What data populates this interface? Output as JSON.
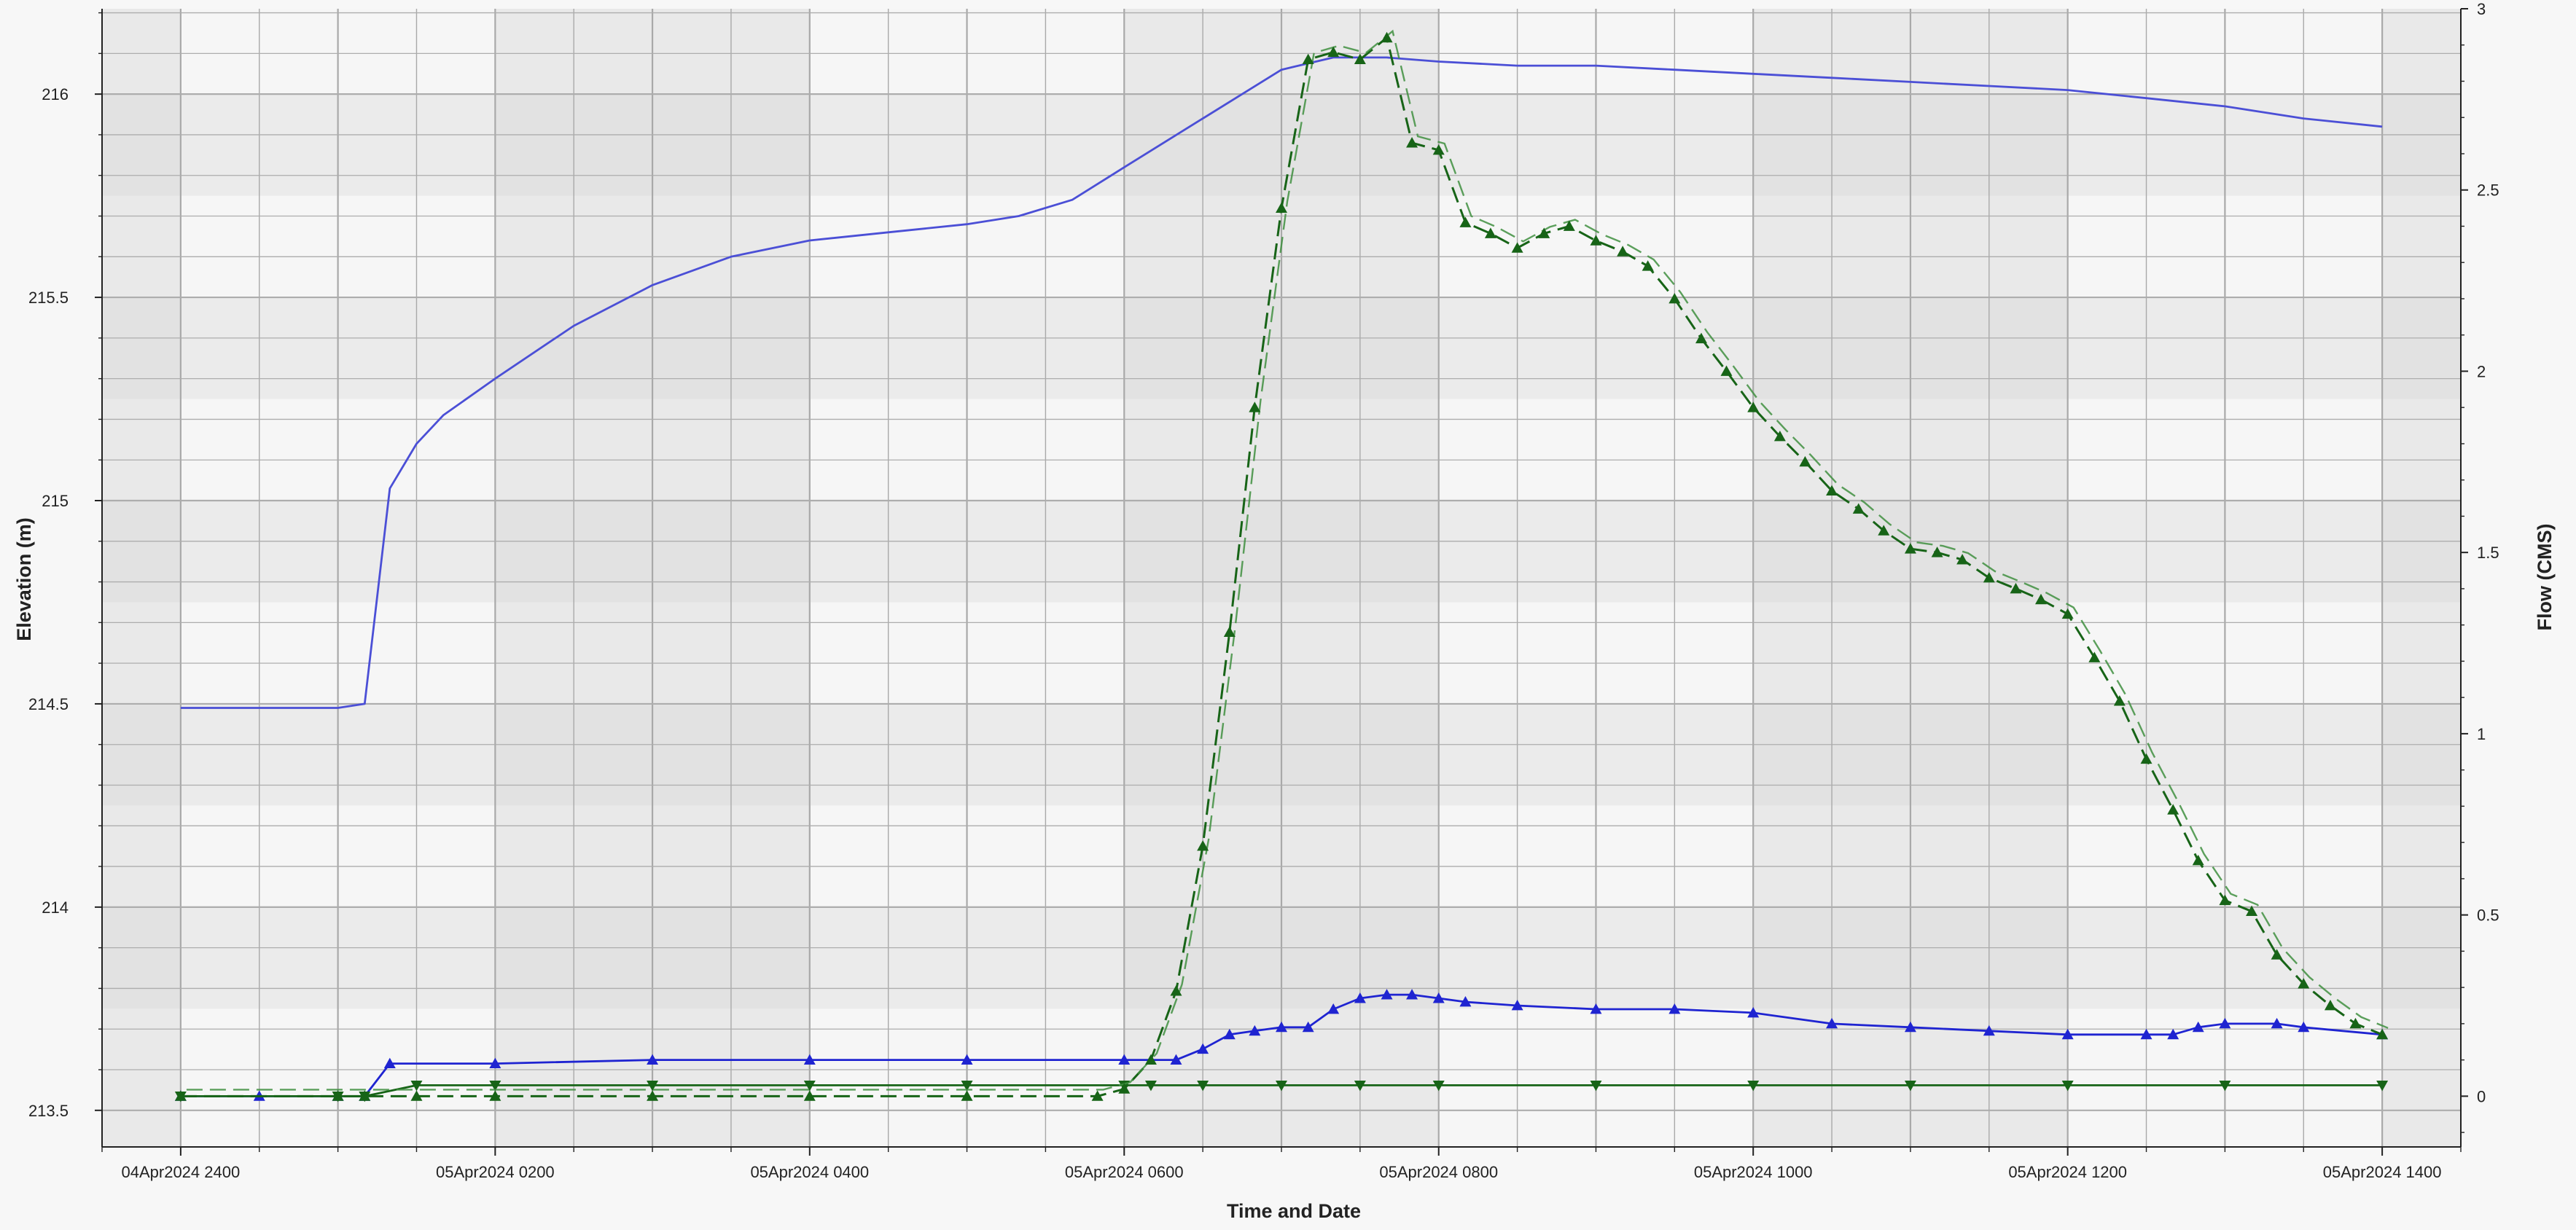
{
  "chart_data": {
    "type": "line",
    "title": "",
    "xlabel": "Time and Date",
    "ylabel_left": "Elevation (m)",
    "ylabel_right": "Flow (CMS)",
    "xlim": [
      -0.5,
      14.5
    ],
    "ylim_left": [
      213.41,
      216.21
    ],
    "ylim_right": [
      -0.14,
      3.0
    ],
    "x_unit": "hours after 04Apr2024 2400",
    "x_ticks": [
      {
        "x": 0,
        "label": "04Apr2024 2400"
      },
      {
        "x": 2,
        "label": "05Apr2024 0200"
      },
      {
        "x": 4,
        "label": "05Apr2024 0400"
      },
      {
        "x": 6,
        "label": "05Apr2024 0600"
      },
      {
        "x": 8,
        "label": "05Apr2024 0800"
      },
      {
        "x": 10,
        "label": "05Apr2024 1000"
      },
      {
        "x": 12,
        "label": "05Apr2024 1200"
      },
      {
        "x": 14,
        "label": "05Apr2024 1400"
      }
    ],
    "y_ticks_left": [
      "213.5",
      "214",
      "214.5",
      "215",
      "215.5",
      "216"
    ],
    "y_ticks_right": [
      "0",
      "0.5",
      "1",
      "1.5",
      "2",
      "2.5",
      "3"
    ],
    "grid": true,
    "legend": "none",
    "colors": {
      "elevation": "#4b4fd6",
      "flow_blue": "#1f24d1",
      "flow_green": "#176417",
      "flow_green_dashed": "#2b7a2b"
    },
    "series": [
      {
        "axis": "left",
        "style": "line",
        "color": "#4b4fd6",
        "x": [
          0,
          1,
          1.17,
          1.33,
          1.5,
          1.67,
          2,
          2.5,
          3,
          3.5,
          4,
          4.5,
          5,
          5.33,
          5.67,
          6,
          6.5,
          7,
          7.33,
          7.67,
          8,
          8.5,
          9,
          9.5,
          10,
          10.5,
          11,
          11.5,
          12,
          12.5,
          13,
          13.5,
          14
        ],
        "values": [
          214.49,
          214.49,
          214.5,
          215.03,
          215.14,
          215.21,
          215.3,
          215.43,
          215.53,
          215.6,
          215.64,
          215.66,
          215.68,
          215.7,
          215.74,
          215.82,
          215.94,
          216.06,
          216.09,
          216.09,
          216.08,
          216.07,
          216.07,
          216.06,
          216.05,
          216.04,
          216.03,
          216.02,
          216.01,
          215.99,
          215.97,
          215.94,
          215.92
        ]
      },
      {
        "axis": "right",
        "style": "markers-up",
        "color": "#1f24d1",
        "x": [
          0,
          0.5,
          1,
          1.17,
          1.33,
          2,
          3,
          4,
          5,
          6,
          6.33,
          6.5,
          6.67,
          6.83,
          7,
          7.17,
          7.33,
          7.5,
          7.67,
          7.83,
          8,
          8.17,
          8.5,
          9,
          9.5,
          10,
          10.5,
          11,
          11.5,
          12,
          12.5,
          12.67,
          12.83,
          13,
          13.33,
          13.5,
          14
        ],
        "values": [
          0.0,
          0.0,
          0.0,
          0.0,
          0.09,
          0.09,
          0.1,
          0.1,
          0.1,
          0.1,
          0.1,
          0.13,
          0.17,
          0.18,
          0.19,
          0.19,
          0.24,
          0.27,
          0.28,
          0.28,
          0.27,
          0.26,
          0.25,
          0.24,
          0.24,
          0.23,
          0.2,
          0.19,
          0.18,
          0.17,
          0.17,
          0.17,
          0.19,
          0.2,
          0.2,
          0.19,
          0.17
        ]
      },
      {
        "axis": "right",
        "style": "markers-down",
        "color": "#176417",
        "x": [
          0,
          1,
          1.17,
          1.5,
          2,
          3,
          4,
          5,
          6,
          6.17,
          6.5,
          7,
          7.5,
          8,
          9,
          10,
          11,
          12,
          13,
          14
        ],
        "values": [
          0.0,
          0.0,
          0.0,
          0.03,
          0.03,
          0.03,
          0.03,
          0.03,
          0.03,
          0.03,
          0.03,
          0.03,
          0.03,
          0.03,
          0.03,
          0.03,
          0.03,
          0.03,
          0.03,
          0.03
        ]
      },
      {
        "axis": "right",
        "style": "dashed-markers-up",
        "color": "#176417",
        "x": [
          0,
          1,
          1.17,
          1.5,
          2,
          3,
          4,
          5,
          5.83,
          6,
          6.17,
          6.33,
          6.5,
          6.67,
          6.83,
          7,
          7.17,
          7.33,
          7.5,
          7.67,
          7.83,
          8,
          8.17,
          8.33,
          8.5,
          8.67,
          8.83,
          9,
          9.17,
          9.33,
          9.5,
          9.67,
          9.83,
          10,
          10.17,
          10.33,
          10.5,
          10.67,
          10.83,
          11,
          11.17,
          11.33,
          11.5,
          11.67,
          11.83,
          12,
          12.17,
          12.33,
          12.5,
          12.67,
          12.83,
          13,
          13.17,
          13.33,
          13.5,
          13.67,
          13.83,
          14
        ],
        "values": [
          0.0,
          0.0,
          0.0,
          0.0,
          0.0,
          0.0,
          0.0,
          0.0,
          0.0,
          0.02,
          0.1,
          0.29,
          0.69,
          1.28,
          1.9,
          2.45,
          2.86,
          2.88,
          2.86,
          2.92,
          2.63,
          2.61,
          2.41,
          2.38,
          2.34,
          2.38,
          2.4,
          2.36,
          2.33,
          2.29,
          2.2,
          2.09,
          2.0,
          1.9,
          1.82,
          1.75,
          1.67,
          1.62,
          1.56,
          1.51,
          1.5,
          1.48,
          1.43,
          1.4,
          1.37,
          1.33,
          1.21,
          1.09,
          0.93,
          0.79,
          0.65,
          0.54,
          0.51,
          0.39,
          0.31,
          0.25,
          0.2,
          0.17
        ]
      }
    ]
  }
}
